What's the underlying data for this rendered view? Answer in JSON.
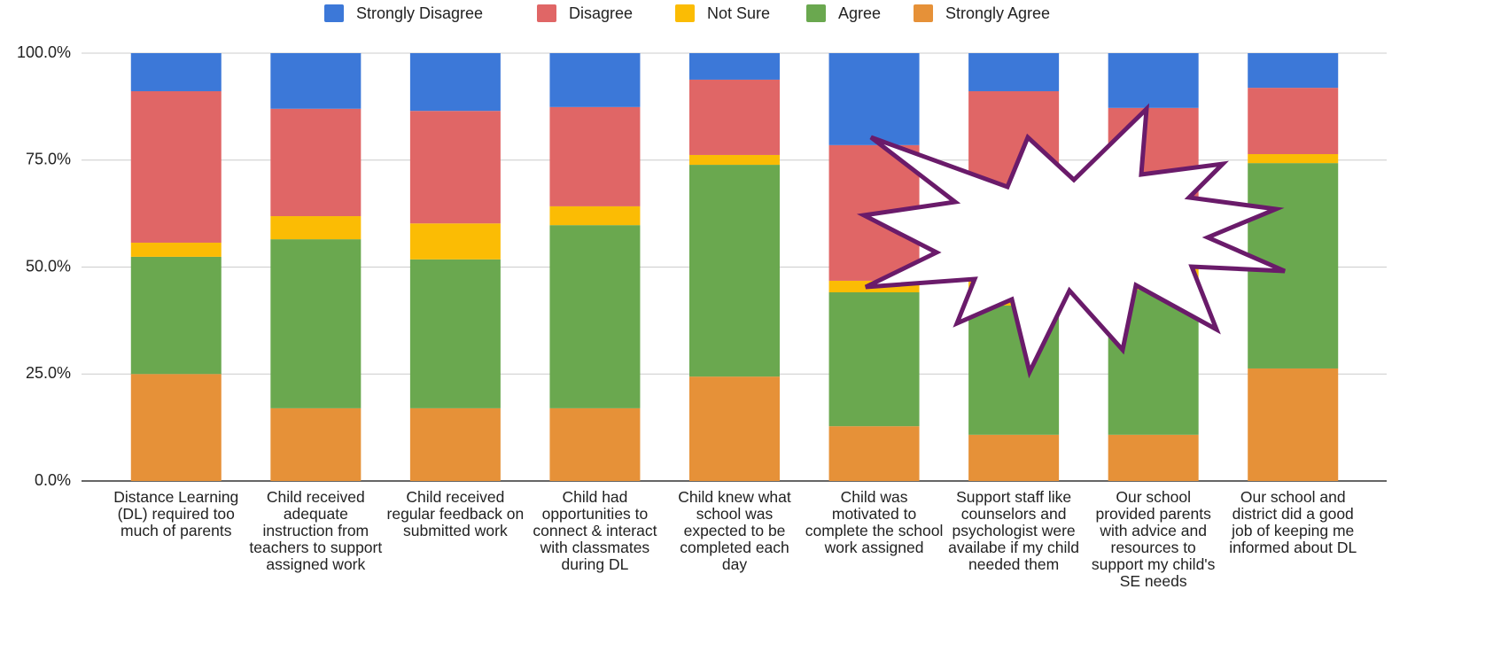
{
  "chart_data": {
    "type": "stacked_bar_percent",
    "categories": [
      "Distance Learning (DL) required too much of parents",
      "Child received adequate instruction from teachers to support assigned work",
      "Child received regular feedback on submitted work",
      "Child had opportunities to connect & interact with classmates during DL",
      "Child knew what school was expected to be completed each day",
      "Child was motivated to complete the school work assigned",
      "Support staff like counselors and psychologist were availabe if my child needed them",
      "Our school provided parents with advice and resources to support my child's SE needs",
      "Our school and district did a good job of keeping me informed about DL"
    ],
    "series": [
      {
        "name": "Strongly Disagree",
        "color": "#3c78d8",
        "values": [
          8.9,
          13.0,
          13.5,
          12.6,
          6.2,
          21.5,
          8.9,
          12.8,
          8.1
        ]
      },
      {
        "name": "Disagree",
        "color": "#e06666",
        "values": [
          35.4,
          25.1,
          26.3,
          23.2,
          17.6,
          31.7,
          22.6,
          25.7,
          15.5
        ]
      },
      {
        "name": "Not Sure",
        "color": "#fbbc04",
        "values": [
          3.3,
          5.4,
          8.4,
          4.4,
          2.3,
          2.7,
          27.5,
          16.8,
          2.1
        ]
      },
      {
        "name": "Agree",
        "color": "#6aa84f",
        "values": [
          27.4,
          39.5,
          34.8,
          42.8,
          49.5,
          31.3,
          30.2,
          33.9,
          48.0
        ]
      },
      {
        "name": "Strongly Agree",
        "color": "#e69138",
        "values": [
          25.0,
          17.0,
          17.0,
          17.0,
          24.4,
          12.8,
          10.8,
          10.8,
          26.3
        ]
      }
    ],
    "ylim": [
      0,
      100
    ],
    "yticks": [
      {
        "value": 0,
        "label": "0.0%"
      },
      {
        "value": 25,
        "label": "25.0%"
      },
      {
        "value": 50,
        "label": "50.0%"
      },
      {
        "value": 75,
        "label": "75.0%"
      },
      {
        "value": 100,
        "label": "100.0%"
      }
    ],
    "grid": true,
    "legend": "top"
  }
}
